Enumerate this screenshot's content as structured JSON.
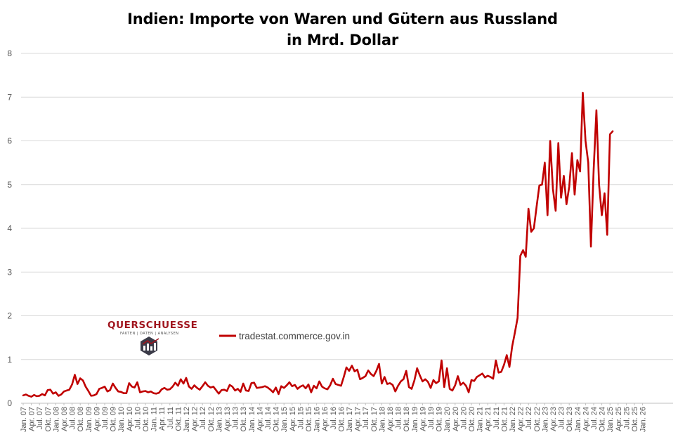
{
  "chart_data": {
    "type": "line",
    "title_line1": "Indien: Importe von Waren und Gütern aus Russland",
    "title_line2": "in Mrd. Dollar",
    "xlabel": "",
    "ylabel": "",
    "ylim": [
      0,
      8
    ],
    "y_ticks": [
      "0",
      "1",
      "2",
      "3",
      "4",
      "5",
      "6",
      "7",
      "8"
    ],
    "x_tick_labels": [
      "Jan. 07",
      "Apr. 07",
      "Jul. 07",
      "Okt. 07",
      "Jan. 08",
      "Apr. 08",
      "Jul. 08",
      "Okt. 08",
      "Jan. 09",
      "Apr. 09",
      "Jul. 09",
      "Okt. 09",
      "Jan. 10",
      "Apr. 10",
      "Jul. 10",
      "Okt. 10",
      "Jan. 11",
      "Apr. 11",
      "Jul. 11",
      "Okt. 11",
      "Jan. 12",
      "Apr. 12",
      "Jul. 12",
      "Okt. 12",
      "Jan. 13",
      "Apr. 13",
      "Jul. 13",
      "Okt. 13",
      "Jan. 14",
      "Apr. 14",
      "Jul. 14",
      "Okt. 14",
      "Jan. 15",
      "Apr. 15",
      "Jul. 15",
      "Okt. 15",
      "Jan. 16",
      "Apr. 16",
      "Jul. 16",
      "Okt. 16",
      "Jan. 17",
      "Apr. 17",
      "Jul. 17",
      "Okt. 17",
      "Jan. 18",
      "Apr. 18",
      "Jul. 18",
      "Okt. 18",
      "Jan. 19",
      "Apr. 19",
      "Jul. 19",
      "Okt. 19",
      "Jan. 20",
      "Apr. 20",
      "Jul. 20",
      "Okt. 20",
      "Jan. 21",
      "Apr. 21",
      "Jul. 21",
      "Okt. 21",
      "Jan. 22",
      "Apr. 22",
      "Jul. 22",
      "Okt. 22",
      "Jan. 23",
      "Apr. 23",
      "Jul. 23",
      "Okt. 23",
      "Jan. 24",
      "Apr. 24",
      "Jul. 24",
      "Okt. 24",
      "Jan. 25",
      "Apr. 25",
      "Jul. 25",
      "Okt. 25",
      "Jan. 26"
    ],
    "grid": "horizontal",
    "legend_position": "top-left",
    "series": [
      {
        "name": "tradestat.commerce.gov.in",
        "color": "#c00000",
        "start": "Jan. 07",
        "frequency": "monthly",
        "values": [
          0.18,
          0.2,
          0.17,
          0.15,
          0.19,
          0.16,
          0.17,
          0.21,
          0.18,
          0.3,
          0.31,
          0.22,
          0.25,
          0.17,
          0.2,
          0.27,
          0.29,
          0.31,
          0.43,
          0.65,
          0.44,
          0.57,
          0.52,
          0.38,
          0.28,
          0.17,
          0.18,
          0.21,
          0.33,
          0.35,
          0.38,
          0.27,
          0.3,
          0.45,
          0.35,
          0.27,
          0.26,
          0.23,
          0.23,
          0.46,
          0.38,
          0.36,
          0.48,
          0.25,
          0.27,
          0.28,
          0.25,
          0.27,
          0.23,
          0.22,
          0.24,
          0.32,
          0.35,
          0.31,
          0.32,
          0.38,
          0.47,
          0.4,
          0.55,
          0.45,
          0.58,
          0.38,
          0.33,
          0.41,
          0.35,
          0.31,
          0.39,
          0.48,
          0.4,
          0.36,
          0.38,
          0.3,
          0.22,
          0.3,
          0.31,
          0.28,
          0.42,
          0.38,
          0.29,
          0.33,
          0.26,
          0.45,
          0.29,
          0.28,
          0.46,
          0.47,
          0.35,
          0.36,
          0.37,
          0.39,
          0.36,
          0.31,
          0.25,
          0.36,
          0.21,
          0.39,
          0.35,
          0.41,
          0.48,
          0.39,
          0.42,
          0.33,
          0.38,
          0.41,
          0.34,
          0.43,
          0.25,
          0.4,
          0.34,
          0.5,
          0.38,
          0.34,
          0.32,
          0.41,
          0.56,
          0.44,
          0.42,
          0.4,
          0.6,
          0.82,
          0.74,
          0.86,
          0.73,
          0.77,
          0.55,
          0.58,
          0.62,
          0.75,
          0.67,
          0.62,
          0.74,
          0.9,
          0.45,
          0.6,
          0.44,
          0.46,
          0.42,
          0.27,
          0.4,
          0.5,
          0.55,
          0.74,
          0.37,
          0.33,
          0.52,
          0.8,
          0.64,
          0.5,
          0.55,
          0.49,
          0.35,
          0.53,
          0.46,
          0.5,
          0.98,
          0.37,
          0.8,
          0.33,
          0.29,
          0.41,
          0.62,
          0.42,
          0.47,
          0.4,
          0.25,
          0.53,
          0.51,
          0.6,
          0.64,
          0.68,
          0.59,
          0.63,
          0.6,
          0.56,
          0.98,
          0.7,
          0.72,
          0.88,
          1.1,
          0.83,
          1.3,
          1.62,
          1.95,
          3.37,
          3.5,
          3.35,
          4.45,
          3.92,
          4.0,
          4.5,
          4.98,
          5.0,
          5.5,
          4.3,
          6.0,
          4.9,
          4.4,
          5.95,
          4.7,
          5.2,
          4.55,
          4.95,
          5.72,
          4.77,
          5.56,
          5.3,
          7.1,
          6.0,
          5.5,
          3.58,
          5.35,
          6.7,
          5.0,
          4.3,
          4.8,
          3.85,
          6.15,
          6.22
        ]
      }
    ]
  },
  "legend": {
    "label": "tradestat.commerce.gov.in"
  },
  "logo": {
    "name": "QUERSCHUESSE",
    "tagline": "FAKTEN | DATEN | ANALYSEN"
  },
  "colors": {
    "series": "#c00000",
    "grid": "#d9d9d9",
    "brand": "#a0151e"
  }
}
